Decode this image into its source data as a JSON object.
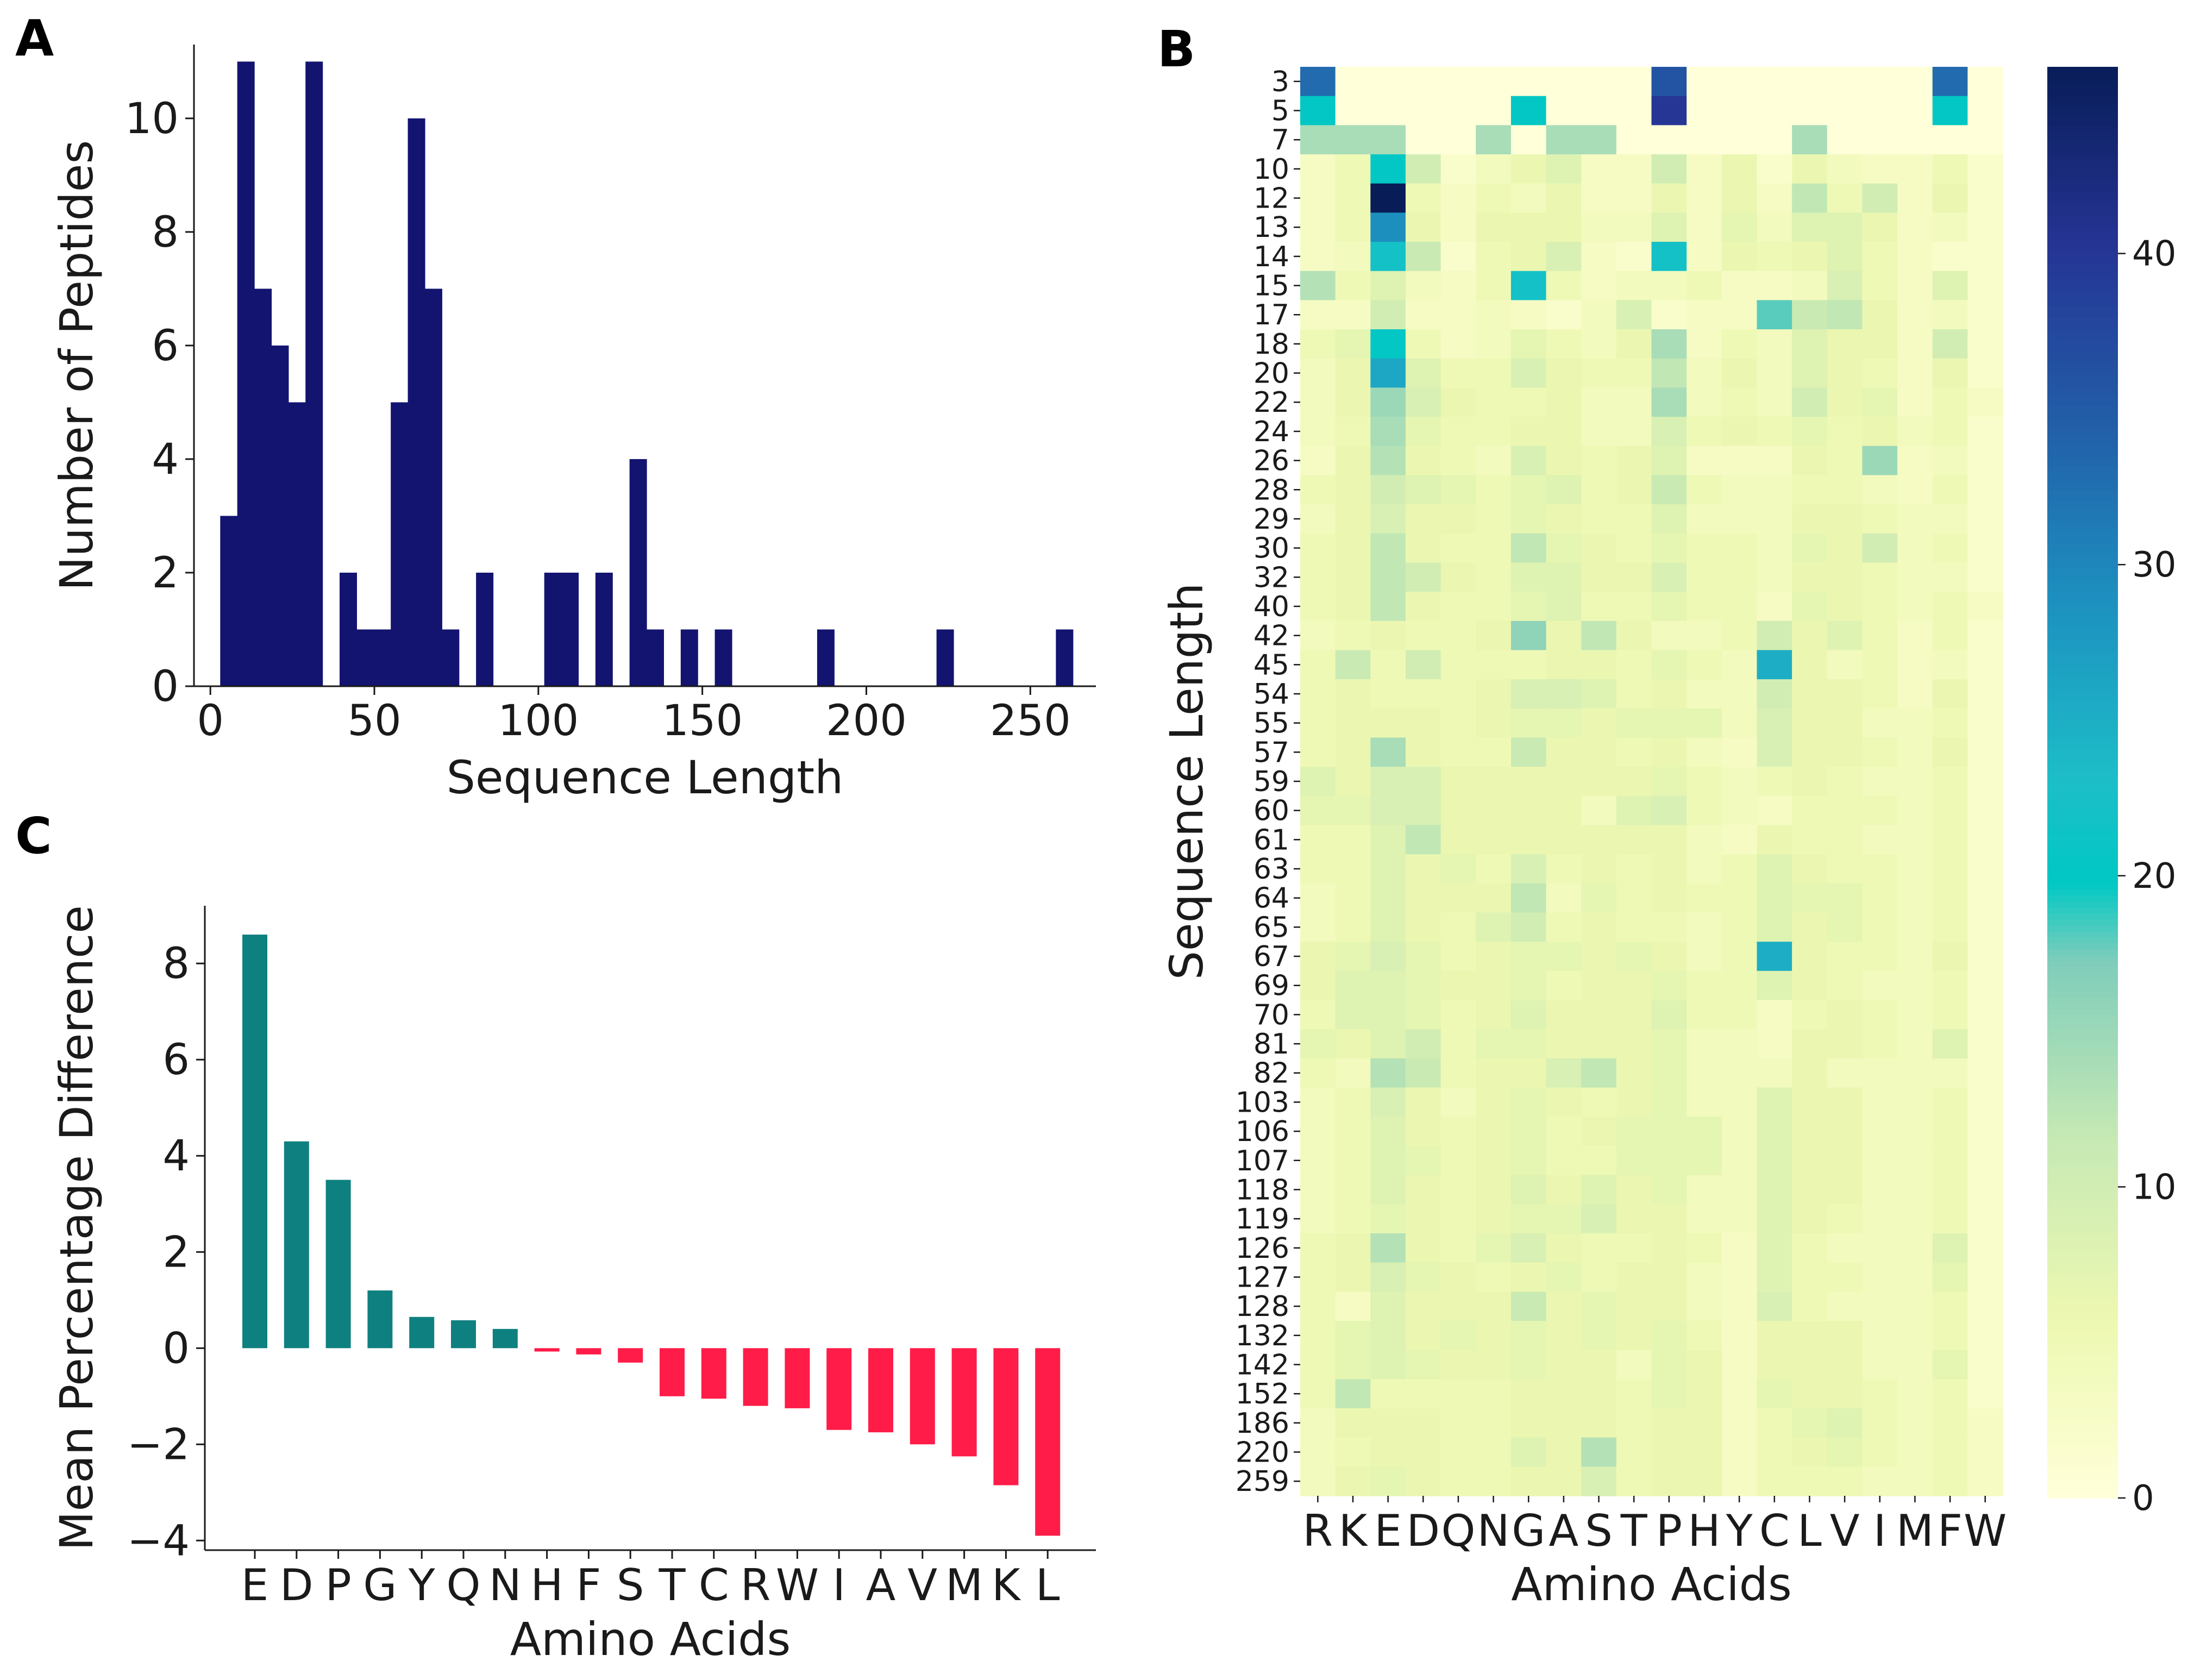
{
  "panel_letters": {
    "a": "A",
    "b": "B",
    "c": "C"
  },
  "colors": {
    "histogram_bar": "#131470",
    "positive_bar": "#0f8080",
    "negative_bar": "#ff1c48",
    "axis": "#1a1a1a"
  },
  "chart_data": [
    {
      "id": "A",
      "type": "bar",
      "subtype": "histogram",
      "title": "",
      "xlabel": "Sequence Length",
      "ylabel": "Number of Peptides",
      "xlim": [
        -5,
        270
      ],
      "ylim": [
        0,
        11.3
      ],
      "xticks": [
        0,
        50,
        100,
        150,
        200,
        250
      ],
      "yticks": [
        0,
        2,
        4,
        6,
        8,
        10
      ],
      "bin_width": 5.2,
      "bins": [
        {
          "x0": 3.0,
          "count": 3
        },
        {
          "x0": 8.2,
          "count": 11
        },
        {
          "x0": 13.4,
          "count": 7
        },
        {
          "x0": 18.6,
          "count": 6
        },
        {
          "x0": 23.8,
          "count": 5
        },
        {
          "x0": 29.0,
          "count": 11
        },
        {
          "x0": 39.4,
          "count": 2
        },
        {
          "x0": 44.6,
          "count": 1
        },
        {
          "x0": 49.8,
          "count": 1
        },
        {
          "x0": 55.0,
          "count": 5
        },
        {
          "x0": 60.2,
          "count": 10
        },
        {
          "x0": 65.4,
          "count": 7
        },
        {
          "x0": 70.6,
          "count": 1
        },
        {
          "x0": 81.0,
          "count": 2
        },
        {
          "x0": 101.8,
          "count": 2
        },
        {
          "x0": 107.0,
          "count": 2
        },
        {
          "x0": 117.4,
          "count": 2
        },
        {
          "x0": 127.8,
          "count": 4
        },
        {
          "x0": 133.0,
          "count": 1
        },
        {
          "x0": 143.4,
          "count": 1
        },
        {
          "x0": 153.8,
          "count": 1
        },
        {
          "x0": 185.0,
          "count": 1
        },
        {
          "x0": 221.4,
          "count": 1
        },
        {
          "x0": 257.8,
          "count": 1
        }
      ]
    },
    {
      "id": "B",
      "type": "heatmap",
      "title": "",
      "xlabel": "Amino Acids",
      "ylabel": "Sequence Length",
      "x": [
        "R",
        "K",
        "E",
        "D",
        "Q",
        "N",
        "G",
        "A",
        "S",
        "T",
        "P",
        "H",
        "Y",
        "C",
        "L",
        "V",
        "I",
        "M",
        "F",
        "W"
      ],
      "y": [
        "3",
        "5",
        "7",
        "10",
        "12",
        "13",
        "14",
        "15",
        "17",
        "18",
        "20",
        "22",
        "24",
        "26",
        "28",
        "29",
        "30",
        "32",
        "40",
        "42",
        "45",
        "54",
        "55",
        "57",
        "59",
        "60",
        "61",
        "63",
        "64",
        "65",
        "67",
        "69",
        "70",
        "81",
        "82",
        "103",
        "106",
        "107",
        "118",
        "119",
        "126",
        "127",
        "128",
        "132",
        "142",
        "152",
        "186",
        "220",
        "259"
      ],
      "colorbar": {
        "range": [
          0,
          46
        ],
        "ticks": [
          0,
          10,
          20,
          30,
          40
        ],
        "colormap": "YlGnBu"
      },
      "values": [
        [
          33,
          0,
          0,
          0,
          0,
          0,
          0,
          0,
          0,
          0,
          36,
          0,
          0,
          0,
          0,
          0,
          0,
          0,
          33,
          0
        ],
        [
          20,
          0,
          0,
          0,
          0,
          0,
          20,
          0,
          0,
          0,
          40,
          0,
          0,
          0,
          0,
          0,
          0,
          0,
          20,
          0
        ],
        [
          14,
          14,
          14,
          0,
          0,
          14,
          0,
          14,
          14,
          0,
          0,
          0,
          0,
          0,
          14,
          0,
          0,
          0,
          0,
          0
        ],
        [
          3,
          5,
          20,
          10,
          2,
          4,
          6,
          8,
          3,
          3,
          10,
          3,
          6,
          2,
          6,
          4,
          3,
          3,
          5,
          2
        ],
        [
          3,
          5,
          46,
          5,
          3,
          5,
          4,
          6,
          3,
          3,
          6,
          3,
          6,
          3,
          12,
          5,
          10,
          3,
          6,
          2
        ],
        [
          3,
          5,
          29,
          6,
          3,
          6,
          6,
          6,
          4,
          4,
          8,
          3,
          7,
          4,
          8,
          8,
          6,
          3,
          4,
          2
        ],
        [
          3,
          4,
          22,
          11,
          2,
          5,
          6,
          9,
          3,
          2,
          22,
          3,
          6,
          5,
          6,
          8,
          5,
          3,
          2,
          2
        ],
        [
          13,
          5,
          8,
          4,
          3,
          5,
          22,
          5,
          3,
          4,
          4,
          5,
          3,
          3,
          4,
          9,
          5,
          3,
          8,
          2
        ],
        [
          3,
          3,
          10,
          3,
          3,
          4,
          3,
          2,
          4,
          9,
          2,
          3,
          3,
          18,
          11,
          12,
          6,
          3,
          4,
          2
        ],
        [
          5,
          7,
          20,
          5,
          3,
          4,
          7,
          5,
          4,
          6,
          14,
          3,
          5,
          4,
          8,
          6,
          6,
          3,
          10,
          2
        ],
        [
          4,
          6,
          26,
          8,
          5,
          5,
          9,
          6,
          5,
          5,
          12,
          4,
          6,
          4,
          8,
          6,
          5,
          3,
          6,
          2
        ],
        [
          4,
          6,
          15,
          9,
          6,
          5,
          5,
          6,
          4,
          4,
          14,
          4,
          5,
          4,
          10,
          6,
          7,
          3,
          5,
          3
        ],
        [
          4,
          5,
          14,
          7,
          5,
          5,
          6,
          6,
          4,
          4,
          9,
          5,
          6,
          5,
          7,
          5,
          6,
          4,
          5,
          2
        ],
        [
          3,
          6,
          13,
          6,
          5,
          4,
          9,
          6,
          5,
          6,
          8,
          3,
          3,
          3,
          6,
          5,
          15,
          3,
          4,
          2
        ],
        [
          5,
          6,
          10,
          8,
          7,
          5,
          7,
          8,
          5,
          6,
          11,
          5,
          4,
          4,
          5,
          5,
          4,
          3,
          5,
          2
        ],
        [
          4,
          6,
          9,
          6,
          6,
          5,
          7,
          6,
          5,
          5,
          8,
          4,
          4,
          4,
          6,
          6,
          5,
          4,
          4,
          2
        ],
        [
          5,
          6,
          12,
          6,
          5,
          5,
          12,
          7,
          6,
          5,
          7,
          5,
          5,
          4,
          7,
          6,
          10,
          4,
          5,
          2
        ],
        [
          5,
          6,
          12,
          10,
          6,
          5,
          8,
          8,
          6,
          6,
          9,
          5,
          5,
          4,
          6,
          6,
          5,
          4,
          4,
          2
        ],
        [
          5,
          6,
          12,
          6,
          5,
          5,
          7,
          8,
          5,
          5,
          7,
          5,
          5,
          3,
          7,
          6,
          5,
          4,
          5,
          3
        ],
        [
          4,
          5,
          6,
          5,
          5,
          6,
          16,
          6,
          12,
          6,
          4,
          4,
          5,
          10,
          6,
          8,
          5,
          3,
          5,
          2
        ],
        [
          5,
          11,
          5,
          10,
          5,
          5,
          5,
          6,
          6,
          5,
          7,
          5,
          4,
          25,
          6,
          4,
          5,
          3,
          4,
          2
        ],
        [
          5,
          6,
          5,
          5,
          5,
          6,
          9,
          9,
          8,
          5,
          6,
          4,
          4,
          10,
          6,
          6,
          5,
          3,
          6,
          2
        ],
        [
          5,
          6,
          6,
          6,
          5,
          6,
          7,
          7,
          6,
          7,
          7,
          7,
          4,
          9,
          6,
          6,
          4,
          4,
          5,
          2
        ],
        [
          5,
          6,
          14,
          6,
          5,
          5,
          11,
          6,
          6,
          5,
          6,
          4,
          3,
          9,
          6,
          6,
          5,
          4,
          6,
          2
        ],
        [
          8,
          6,
          9,
          9,
          6,
          6,
          6,
          6,
          6,
          6,
          7,
          5,
          4,
          5,
          6,
          5,
          4,
          4,
          5,
          2
        ],
        [
          7,
          7,
          9,
          9,
          6,
          6,
          6,
          6,
          4,
          8,
          9,
          5,
          4,
          3,
          5,
          5,
          5,
          4,
          5,
          2
        ],
        [
          5,
          5,
          8,
          12,
          6,
          6,
          6,
          6,
          6,
          6,
          6,
          4,
          3,
          6,
          5,
          5,
          4,
          4,
          5,
          2
        ],
        [
          5,
          5,
          8,
          6,
          7,
          5,
          9,
          5,
          6,
          5,
          6,
          4,
          5,
          8,
          6,
          5,
          5,
          4,
          5,
          2
        ],
        [
          4,
          5,
          8,
          6,
          6,
          6,
          12,
          4,
          7,
          5,
          6,
          5,
          5,
          8,
          7,
          7,
          5,
          4,
          5,
          2
        ],
        [
          4,
          5,
          8,
          6,
          5,
          8,
          10,
          5,
          6,
          5,
          5,
          4,
          5,
          8,
          6,
          7,
          5,
          4,
          5,
          2
        ],
        [
          6,
          7,
          9,
          7,
          5,
          6,
          7,
          7,
          6,
          7,
          6,
          4,
          5,
          25,
          6,
          5,
          5,
          4,
          6,
          2
        ],
        [
          6,
          8,
          8,
          7,
          6,
          6,
          7,
          5,
          6,
          6,
          7,
          5,
          5,
          8,
          6,
          5,
          4,
          4,
          5,
          2
        ],
        [
          5,
          8,
          8,
          7,
          5,
          6,
          8,
          6,
          6,
          6,
          8,
          5,
          5,
          3,
          5,
          6,
          5,
          4,
          5,
          2
        ],
        [
          7,
          6,
          8,
          10,
          5,
          7,
          7,
          6,
          6,
          6,
          7,
          4,
          4,
          3,
          6,
          6,
          5,
          4,
          8,
          2
        ],
        [
          5,
          4,
          13,
          11,
          5,
          6,
          6,
          9,
          12,
          6,
          7,
          4,
          4,
          4,
          6,
          4,
          4,
          4,
          4,
          2
        ],
        [
          4,
          5,
          9,
          6,
          4,
          6,
          7,
          6,
          5,
          6,
          7,
          4,
          4,
          8,
          6,
          6,
          4,
          4,
          5,
          2
        ],
        [
          4,
          5,
          8,
          6,
          5,
          6,
          7,
          5,
          6,
          7,
          7,
          7,
          4,
          8,
          6,
          6,
          4,
          4,
          5,
          2
        ],
        [
          4,
          5,
          8,
          7,
          5,
          6,
          7,
          5,
          5,
          7,
          7,
          7,
          4,
          8,
          6,
          6,
          4,
          4,
          5,
          2
        ],
        [
          4,
          5,
          8,
          6,
          5,
          6,
          8,
          6,
          8,
          6,
          7,
          4,
          4,
          8,
          6,
          6,
          4,
          4,
          5,
          2
        ],
        [
          4,
          5,
          7,
          6,
          5,
          6,
          7,
          7,
          9,
          6,
          6,
          4,
          4,
          8,
          6,
          5,
          4,
          4,
          5,
          2
        ],
        [
          5,
          6,
          13,
          6,
          5,
          7,
          9,
          6,
          5,
          5,
          6,
          5,
          3,
          8,
          5,
          4,
          4,
          4,
          8,
          2
        ],
        [
          5,
          6,
          9,
          7,
          6,
          5,
          6,
          7,
          5,
          6,
          6,
          4,
          3,
          8,
          5,
          5,
          4,
          4,
          7,
          2
        ],
        [
          5,
          3,
          8,
          6,
          6,
          6,
          11,
          6,
          7,
          6,
          6,
          4,
          3,
          9,
          5,
          4,
          4,
          4,
          5,
          2
        ],
        [
          5,
          7,
          8,
          6,
          7,
          6,
          7,
          6,
          7,
          6,
          7,
          5,
          3,
          6,
          6,
          6,
          4,
          4,
          5,
          2
        ],
        [
          5,
          7,
          8,
          7,
          6,
          6,
          7,
          6,
          6,
          4,
          7,
          6,
          3,
          6,
          6,
          6,
          4,
          4,
          7,
          2
        ],
        [
          5,
          12,
          5,
          5,
          5,
          5,
          6,
          6,
          6,
          5,
          7,
          6,
          3,
          7,
          6,
          6,
          5,
          4,
          5,
          2
        ],
        [
          4,
          6,
          6,
          6,
          5,
          5,
          6,
          6,
          6,
          5,
          6,
          6,
          3,
          5,
          7,
          8,
          5,
          4,
          5,
          3
        ],
        [
          4,
          5,
          6,
          6,
          5,
          5,
          8,
          6,
          13,
          5,
          6,
          6,
          3,
          5,
          6,
          7,
          5,
          4,
          5,
          3
        ],
        [
          4,
          6,
          7,
          6,
          5,
          5,
          6,
          6,
          9,
          5,
          6,
          6,
          3,
          5,
          5,
          5,
          4,
          4,
          5,
          3
        ]
      ]
    },
    {
      "id": "C",
      "type": "bar",
      "title": "",
      "xlabel": "Amino Acids",
      "ylabel": "Mean Percentage Difference",
      "ylim": [
        -4.2,
        9.2
      ],
      "yticks": [
        -4,
        -2,
        0,
        2,
        4,
        6,
        8
      ],
      "categories": [
        "E",
        "D",
        "P",
        "G",
        "Y",
        "Q",
        "N",
        "H",
        "F",
        "S",
        "T",
        "C",
        "R",
        "W",
        "I",
        "A",
        "V",
        "M",
        "K",
        "L"
      ],
      "values": [
        8.6,
        4.3,
        3.5,
        1.2,
        0.65,
        0.58,
        0.4,
        -0.07,
        -0.13,
        -0.3,
        -1.0,
        -1.05,
        -1.2,
        -1.25,
        -1.7,
        -1.75,
        -2.0,
        -2.25,
        -2.85,
        -3.9
      ]
    }
  ]
}
